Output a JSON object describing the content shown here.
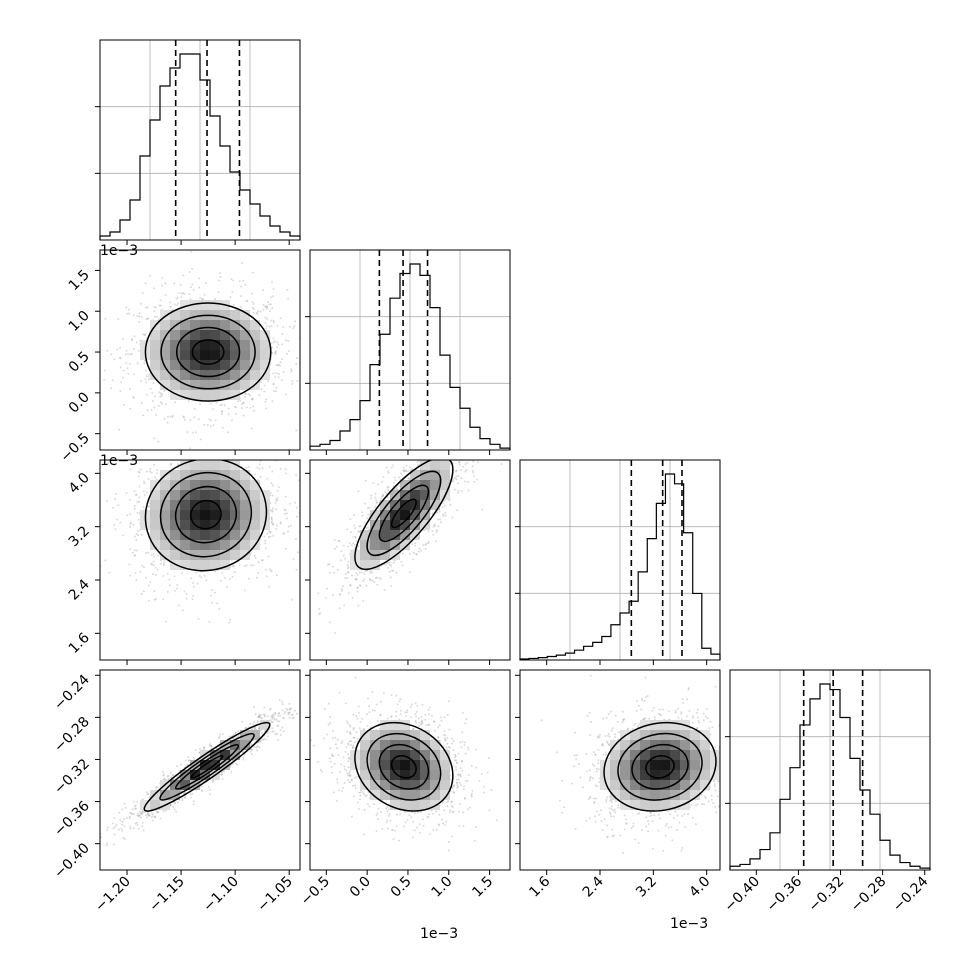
{
  "figure": {
    "type": "corner-plot",
    "parameters": [
      {
        "offset_label": "",
        "tick_labels": [
          "-1.20",
          "-1.15",
          "-1.10",
          "-1.05"
        ],
        "ticks": [
          -1.2,
          -1.15,
          -1.1,
          -1.05
        ]
      },
      {
        "offset_label": "1e−3",
        "tick_labels": [
          "-0.5",
          "0.0",
          "0.5",
          "1.0",
          "1.5"
        ],
        "ticks": [
          -0.5,
          0.0,
          0.5,
          1.0,
          1.5
        ]
      },
      {
        "offset_label": "1e−3",
        "tick_labels": [
          "1.6",
          "2.4",
          "3.2",
          "4.0"
        ],
        "ticks": [
          1.6,
          2.4,
          3.2,
          4.0
        ]
      },
      {
        "offset_label": "",
        "tick_labels": [
          "-0.40",
          "-0.36",
          "-0.32",
          "-0.28",
          "-0.24"
        ],
        "ticks": [
          -0.4,
          -0.36,
          -0.32,
          -0.28,
          -0.24
        ]
      }
    ],
    "bottom_offset_labels": [
      "",
      "1e−3",
      "1e−3",
      ""
    ],
    "left_offset_labels": [
      "",
      "1e−3",
      "1e−3",
      ""
    ]
  },
  "chart_data": [
    {
      "type": "histogram",
      "param": 0,
      "range": [
        -1.225,
        -1.04
      ],
      "counts": [
        2,
        4,
        10,
        20,
        42,
        60,
        77,
        86,
        93,
        93,
        80,
        62,
        47,
        34,
        25,
        18,
        12,
        7,
        4,
        2
      ],
      "quantiles": [
        -1.155,
        -1.126,
        -1.096
      ]
    },
    {
      "type": "histogram",
      "param": 1,
      "range": [
        -0.7,
        1.75
      ],
      "counts": [
        2,
        3,
        5,
        10,
        16,
        26,
        45,
        61,
        80,
        93,
        98,
        92,
        75,
        50,
        33,
        22,
        12,
        6,
        3,
        1
      ],
      "quantiles": [
        0.15,
        0.44,
        0.74
      ]
    },
    {
      "type": "histogram",
      "param": 2,
      "range": [
        1.2,
        4.2
      ],
      "counts": [
        0.5,
        0.8,
        1.2,
        1.8,
        2.5,
        3.5,
        5,
        7,
        9,
        12,
        18,
        24,
        30,
        45,
        62,
        80,
        95,
        90,
        65,
        34,
        6,
        3
      ],
      "quantiles": [
        2.87,
        3.34,
        3.63
      ]
    },
    {
      "type": "histogram",
      "param": 3,
      "range": [
        -0.425,
        -0.235
      ],
      "counts": [
        2,
        3,
        6,
        11,
        20,
        38,
        55,
        78,
        92,
        100,
        97,
        82,
        60,
        43,
        30,
        16,
        8,
        4,
        2,
        1
      ],
      "quantiles": [
        -0.355,
        -0.327,
        -0.299
      ]
    },
    {
      "type": "scatter-density",
      "x_param": 0,
      "y_param": 1,
      "center": [
        -1.125,
        0.5
      ],
      "sd": [
        0.029,
        0.3
      ],
      "corr": 0.0
    },
    {
      "type": "scatter-density",
      "x_param": 0,
      "y_param": 2,
      "center": [
        -1.127,
        3.38
      ],
      "sd": [
        0.028,
        0.42
      ],
      "corr": 0.05
    },
    {
      "type": "scatter-density",
      "x_param": 1,
      "y_param": 2,
      "center": [
        0.45,
        3.4
      ],
      "sd": [
        0.3,
        0.42
      ],
      "corr": 0.78
    },
    {
      "type": "scatter-density",
      "x_param": 0,
      "y_param": 3,
      "center": [
        -1.126,
        -0.327
      ],
      "sd": [
        0.029,
        0.021
      ],
      "corr": 0.95
    },
    {
      "type": "scatter-density",
      "x_param": 1,
      "y_param": 3,
      "center": [
        0.45,
        -0.327
      ],
      "sd": [
        0.3,
        0.021
      ],
      "corr": -0.2
    },
    {
      "type": "scatter-density",
      "x_param": 2,
      "y_param": 3,
      "center": [
        3.3,
        -0.327
      ],
      "sd": [
        0.42,
        0.021
      ],
      "corr": 0.12
    }
  ]
}
